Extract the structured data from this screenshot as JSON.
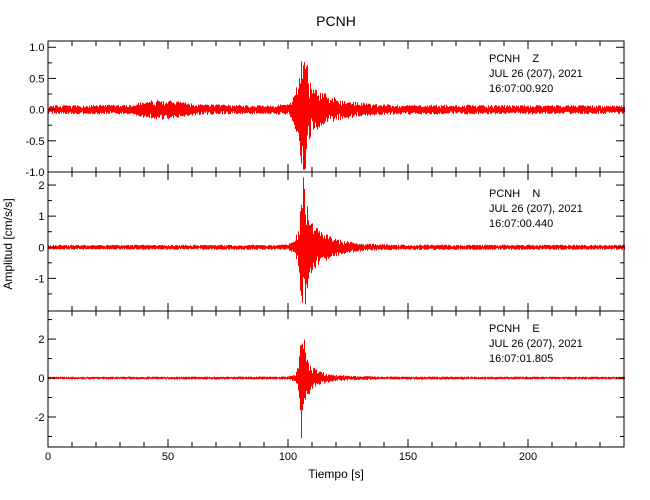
{
  "title": "PCNH",
  "colors": {
    "trace": "#ff0000",
    "axis": "#000000",
    "background": "#ffffff"
  },
  "chart_data": {
    "type": "line",
    "title": "PCNH",
    "xlabel": "Tiempo [s]",
    "ylabel": "Amplitud [cm/s/s]",
    "x_range": [
      0,
      240
    ],
    "x_major_ticks": [
      0,
      50,
      100,
      150,
      200
    ],
    "x_major_tick_labels": [
      "0",
      "50",
      "100",
      "150",
      "200"
    ],
    "x_minor_step": 10,
    "trace_color": "#ff0000",
    "grid": false,
    "legend_position": "inside-top-right",
    "panels": [
      {
        "station": "PCNH",
        "channel": "Z",
        "label": "PCNH    Z",
        "date_line": "JUL 26 (207), 2021",
        "time_line": "16:07:00.920",
        "ylim": [
          -1.0,
          1.1
        ],
        "y_major_ticks": [
          -1.0,
          -0.5,
          0.0,
          0.5,
          1.0
        ],
        "y_tick_labels": [
          "-1.0",
          "-0.5",
          "0.0",
          "0.5",
          "1.0"
        ],
        "y_minor_step": 0.25,
        "peak_time_s": 106,
        "peak_amplitude": 1.0,
        "envelope": [
          [
            0,
            0.07
          ],
          [
            35,
            0.08
          ],
          [
            40,
            0.14
          ],
          [
            48,
            0.17
          ],
          [
            55,
            0.13
          ],
          [
            62,
            0.09
          ],
          [
            90,
            0.07
          ],
          [
            100,
            0.09
          ],
          [
            102,
            0.2
          ],
          [
            104,
            0.45
          ],
          [
            105.5,
            0.9
          ],
          [
            107,
            1.05
          ],
          [
            108.5,
            0.55
          ],
          [
            110,
            0.4
          ],
          [
            113,
            0.3
          ],
          [
            118,
            0.22
          ],
          [
            125,
            0.15
          ],
          [
            133,
            0.1
          ],
          [
            145,
            0.08
          ],
          [
            240,
            0.07
          ]
        ]
      },
      {
        "station": "PCNH",
        "channel": "N",
        "label": "PCNH    N",
        "date_line": "JUL 26 (207), 2021",
        "time_line": "16:07:00.440",
        "ylim": [
          -2.05,
          2.42
        ],
        "y_major_ticks": [
          -1,
          0,
          1,
          2
        ],
        "y_tick_labels": [
          "-1",
          "0",
          "1",
          "2"
        ],
        "y_minor_step": 0.5,
        "peak_time_s": 106,
        "peak_amplitude": 2.35,
        "envelope": [
          [
            0,
            0.08
          ],
          [
            95,
            0.08
          ],
          [
            100,
            0.1
          ],
          [
            103,
            0.3
          ],
          [
            104.5,
            0.8
          ],
          [
            105.5,
            2.0
          ],
          [
            106.5,
            2.38
          ],
          [
            107.5,
            1.5
          ],
          [
            109,
            0.9
          ],
          [
            111,
            0.7
          ],
          [
            114,
            0.5
          ],
          [
            118,
            0.35
          ],
          [
            124,
            0.2
          ],
          [
            132,
            0.12
          ],
          [
            145,
            0.09
          ],
          [
            240,
            0.08
          ]
        ]
      },
      {
        "station": "PCNH",
        "channel": "E",
        "label": "PCNH    E",
        "date_line": "JUL 26 (207), 2021",
        "time_line": "16:07:01.805",
        "ylim": [
          -3.54,
          3.44
        ],
        "y_major_ticks": [
          -2,
          0,
          2
        ],
        "y_tick_labels": [
          "-2",
          "0",
          "2"
        ],
        "y_minor_step": 1.0,
        "peak_time_s": 106,
        "peak_amplitude": 3.5,
        "envelope": [
          [
            0,
            0.07
          ],
          [
            100,
            0.08
          ],
          [
            103,
            0.2
          ],
          [
            104.5,
            0.9
          ],
          [
            105.5,
            3.5
          ],
          [
            106.5,
            2.2
          ],
          [
            108,
            1.0
          ],
          [
            110,
            0.6
          ],
          [
            113,
            0.35
          ],
          [
            118,
            0.2
          ],
          [
            126,
            0.12
          ],
          [
            140,
            0.08
          ],
          [
            240,
            0.07
          ]
        ]
      }
    ]
  }
}
